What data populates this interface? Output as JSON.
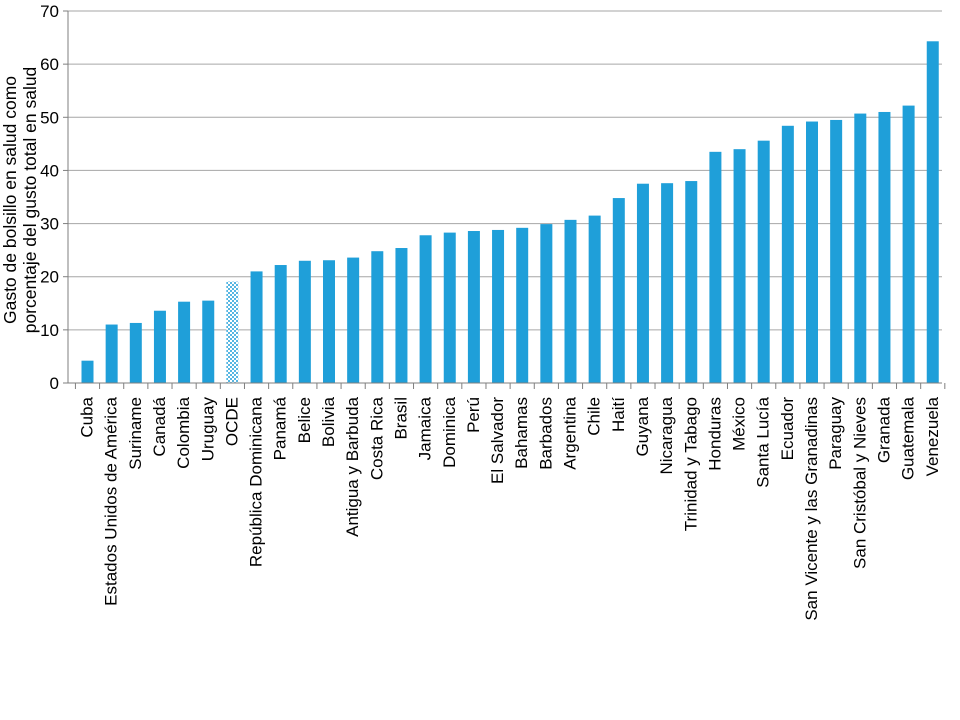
{
  "chart_data": {
    "type": "bar",
    "ylabel": [
      "Gasto de bolsillo en salud como",
      "porcentaje del gusto total en salud"
    ],
    "ylim": [
      0,
      70
    ],
    "yticks": [
      0,
      10,
      20,
      30,
      40,
      50,
      60,
      70
    ],
    "grid": true,
    "categories": [
      "Cuba",
      "Estados Unidos de América",
      "Suriname",
      "Canadá",
      "Colombia",
      "Uruguay",
      "OCDE",
      "República Dominicana",
      "Panamá",
      "Belice",
      "Bolivia",
      "Antigua y Barbuda",
      "Costa Rica",
      "Brasil",
      "Jamaica",
      "Dominica",
      "Perú",
      "El Salvador",
      "Bahamas",
      "Barbados",
      "Argentina",
      "Chile",
      "Haití",
      "Guyana",
      "Nicaragua",
      "Trinidad y Tabago",
      "Honduras",
      "México",
      "Santa Lucía",
      "Ecuador",
      "San Vicente y las Granadinas",
      "Paraguay",
      "San Cristóbal y Nieves",
      "Granada",
      "Guatemala",
      "Venezuela"
    ],
    "values": [
      4.2,
      11.0,
      11.3,
      13.6,
      15.3,
      15.5,
      19.1,
      21.0,
      22.2,
      23.0,
      23.1,
      23.6,
      24.8,
      25.4,
      27.8,
      28.3,
      28.6,
      28.8,
      29.2,
      29.9,
      30.7,
      31.5,
      34.8,
      37.5,
      37.6,
      38.0,
      43.5,
      44.0,
      45.6,
      48.4,
      49.2,
      49.5,
      50.7,
      51.0,
      52.2,
      64.3
    ],
    "highlight_category": "OCDE",
    "colors": {
      "bar": "#1f9fd9",
      "highlight": "#1f9fd9",
      "grid": "#a6a6a6",
      "axis": "#7f7f7f"
    }
  }
}
